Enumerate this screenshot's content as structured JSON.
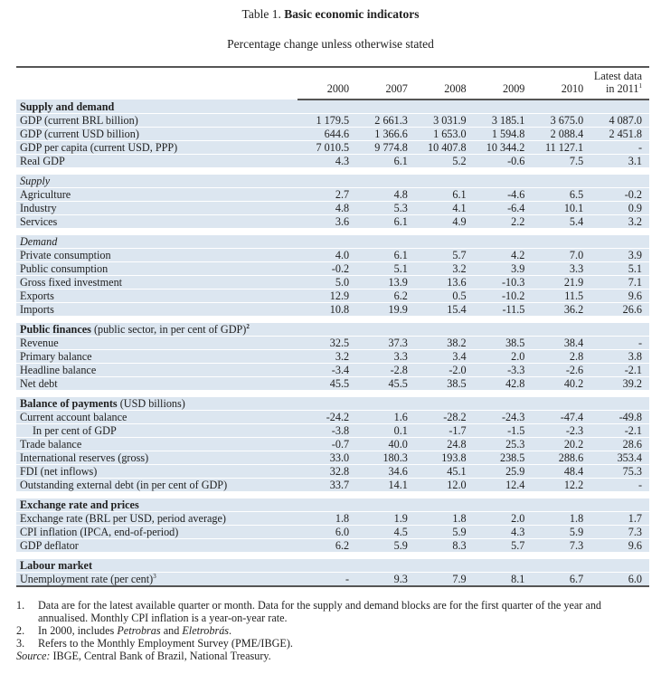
{
  "title": {
    "prefix": "Table 1.",
    "main": "Basic economic indicators"
  },
  "subtitle": "Percentage change unless otherwise stated",
  "columns": [
    "2000",
    "2007",
    "2008",
    "2009",
    "2010",
    "Latest data in 2011"
  ],
  "column_footnote": "1",
  "sections": [
    {
      "label": "Supply and demand",
      "note": "",
      "sup": "",
      "rows": [
        {
          "label": "GDP (current BRL billion)",
          "values": [
            "1 179.5",
            "2 661.3",
            "3 031.9",
            "3 185.1",
            "3 675.0",
            "4 087.0"
          ]
        },
        {
          "label": "GDP (current USD billion)",
          "values": [
            "644.6",
            "1 366.6",
            "1 653.0",
            "1 594.8",
            "2 088.4",
            "2 451.8"
          ]
        },
        {
          "label": "GDP per capita (current USD, PPP)",
          "values": [
            "7 010.5",
            "9 774.8",
            "10 407.8",
            "10 344.2",
            "11 127.1",
            "-"
          ]
        },
        {
          "label": "Real GDP",
          "values": [
            "4.3",
            "6.1",
            "5.2",
            "-0.6",
            "7.5",
            "3.1"
          ]
        }
      ]
    },
    {
      "label": "Supply",
      "italic": true,
      "rows": [
        {
          "label": "Agriculture",
          "values": [
            "2.7",
            "4.8",
            "6.1",
            "-4.6",
            "6.5",
            "-0.2"
          ]
        },
        {
          "label": "Industry",
          "values": [
            "4.8",
            "5.3",
            "4.1",
            "-6.4",
            "10.1",
            "0.9"
          ]
        },
        {
          "label": "Services",
          "values": [
            "3.6",
            "6.1",
            "4.9",
            "2.2",
            "5.4",
            "3.2"
          ]
        }
      ]
    },
    {
      "label": "Demand",
      "italic": true,
      "rows": [
        {
          "label": "Private consumption",
          "values": [
            "4.0",
            "6.1",
            "5.7",
            "4.2",
            "7.0",
            "3.9"
          ]
        },
        {
          "label": "Public consumption",
          "values": [
            "-0.2",
            "5.1",
            "3.2",
            "3.9",
            "3.3",
            "5.1"
          ]
        },
        {
          "label": "Gross fixed investment",
          "values": [
            "5.0",
            "13.9",
            "13.6",
            "-10.3",
            "21.9",
            "7.1"
          ]
        },
        {
          "label": "Exports",
          "values": [
            "12.9",
            "6.2",
            "0.5",
            "-10.2",
            "11.5",
            "9.6"
          ]
        },
        {
          "label": "Imports",
          "values": [
            "10.8",
            "19.9",
            "15.4",
            "-11.5",
            "36.2",
            "26.6"
          ]
        }
      ]
    },
    {
      "label": "Public finances",
      "note": "(public sector, in per cent of GDP)",
      "sup": "2",
      "rows": [
        {
          "label": "Revenue",
          "values": [
            "32.5",
            "37.3",
            "38.2",
            "38.5",
            "38.4",
            "-"
          ]
        },
        {
          "label": "Primary balance",
          "values": [
            "3.2",
            "3.3",
            "3.4",
            "2.0",
            "2.8",
            "3.8"
          ]
        },
        {
          "label": "Headline balance",
          "values": [
            "-3.4",
            "-2.8",
            "-2.0",
            "-3.3",
            "-2.6",
            "-2.1"
          ]
        },
        {
          "label": "Net debt",
          "values": [
            "45.5",
            "45.5",
            "38.5",
            "42.8",
            "40.2",
            "39.2"
          ]
        }
      ]
    },
    {
      "label": "Balance of payments",
      "note": "(USD billions)",
      "sup": "",
      "rows": [
        {
          "label": "Current account balance",
          "values": [
            "-24.2",
            "1.6",
            "-28.2",
            "-24.3",
            "-47.4",
            "-49.8"
          ]
        },
        {
          "label": "In per cent of GDP",
          "indent": true,
          "values": [
            "-3.8",
            "0.1",
            "-1.7",
            "-1.5",
            "-2.3",
            "-2.1"
          ]
        },
        {
          "label": "Trade balance",
          "values": [
            "-0.7",
            "40.0",
            "24.8",
            "25.3",
            "20.2",
            "28.6"
          ]
        },
        {
          "label": "International reserves (gross)",
          "values": [
            "33.0",
            "180.3",
            "193.8",
            "238.5",
            "288.6",
            "353.4"
          ]
        },
        {
          "label": "FDI (net inflows)",
          "values": [
            "32.8",
            "34.6",
            "45.1",
            "25.9",
            "48.4",
            "75.3"
          ]
        },
        {
          "label": "Outstanding external debt (in per cent of GDP)",
          "values": [
            "33.7",
            "14.1",
            "12.0",
            "12.4",
            "12.2",
            "-"
          ]
        }
      ]
    },
    {
      "label": "Exchange rate and prices",
      "note": "",
      "sup": "",
      "rows": [
        {
          "label": "Exchange rate (BRL per USD, period average)",
          "values": [
            "1.8",
            "1.9",
            "1.8",
            "2.0",
            "1.8",
            "1.7"
          ]
        },
        {
          "label": "CPI inflation (IPCA, end-of-period)",
          "values": [
            "6.0",
            "4.5",
            "5.9",
            "4.3",
            "5.9",
            "7.3"
          ]
        },
        {
          "label": "GDP deflator",
          "values": [
            "6.2",
            "5.9",
            "8.3",
            "5.7",
            "7.3",
            "9.6"
          ]
        }
      ]
    },
    {
      "label": "Labour market",
      "note": "",
      "sup": "",
      "rows": [
        {
          "label": "Unemployment rate (per cent)",
          "sup": "3",
          "values": [
            "-",
            "9.3",
            "7.9",
            "8.1",
            "6.7",
            "6.0"
          ]
        }
      ]
    }
  ],
  "notes": [
    {
      "num": "1.",
      "text": "Data are for the latest available quarter or month. Data for the supply and demand blocks are for the first quarter of the year and annualised. Monthly CPI inflation is a year-on-year rate."
    },
    {
      "num": "2.",
      "text_before": "In 2000, includes ",
      "italic1": "Petrobras",
      "text_mid": " and ",
      "italic2": "Eletrobrás",
      "text_after": "."
    },
    {
      "num": "3.",
      "text": "Refers to the Monthly Employment Survey (PME/IBGE)."
    }
  ],
  "source": {
    "label": "Source:",
    "text": " IBGE, Central Bank of Brazil, National Treasury."
  }
}
